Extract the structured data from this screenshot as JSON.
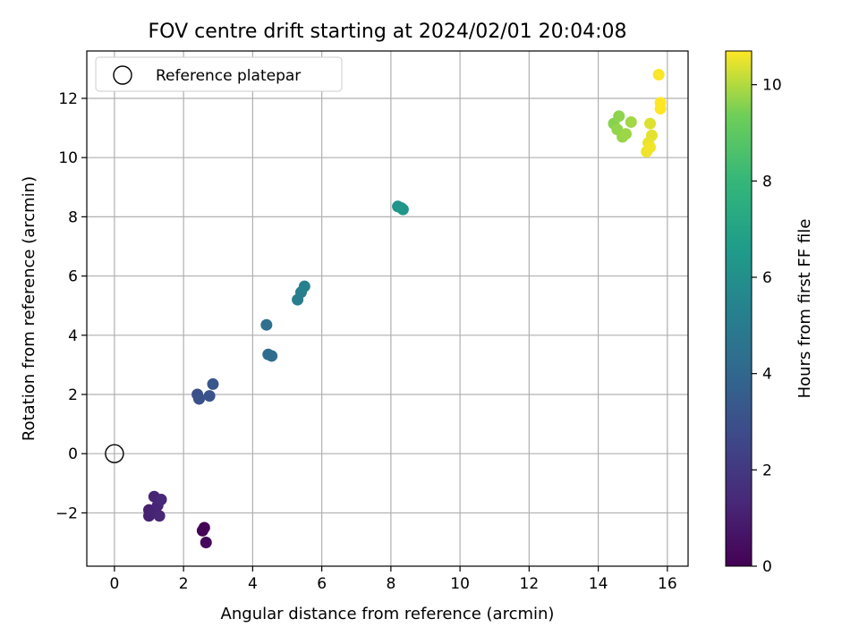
{
  "chart_data": {
    "type": "scatter",
    "title": "FOV centre drift starting at 2024/02/01 20:04:08",
    "xlabel": "Angular distance from reference (arcmin)",
    "ylabel": "Rotation from reference (arcmin)",
    "xlim": [
      -0.8,
      16.6
    ],
    "ylim": [
      -3.8,
      13.6
    ],
    "xticks": [
      0,
      2,
      4,
      6,
      8,
      10,
      12,
      14,
      16
    ],
    "yticks": [
      -2,
      0,
      2,
      4,
      6,
      8,
      10,
      12
    ],
    "grid": true,
    "legend": {
      "position": "top-left",
      "entries": [
        "Reference platepar"
      ]
    },
    "reference_point": {
      "x": 0,
      "y": 0,
      "label": "Reference platepar"
    },
    "colorbar": {
      "label": "Hours from first FF file",
      "range": [
        0,
        10.7
      ],
      "ticks": [
        0,
        2,
        4,
        6,
        8,
        10
      ],
      "colormap": "viridis"
    },
    "points": [
      {
        "x": 2.6,
        "y": -2.5,
        "c": 0.0
      },
      {
        "x": 2.55,
        "y": -2.6,
        "c": 0.1
      },
      {
        "x": 2.65,
        "y": -3.0,
        "c": 0.25
      },
      {
        "x": 1.0,
        "y": -1.9,
        "c": 1.05
      },
      {
        "x": 1.0,
        "y": -2.1,
        "c": 1.1
      },
      {
        "x": 1.1,
        "y": -1.95,
        "c": 1.15
      },
      {
        "x": 1.15,
        "y": -1.45,
        "c": 1.2
      },
      {
        "x": 1.25,
        "y": -1.75,
        "c": 1.25
      },
      {
        "x": 1.3,
        "y": -2.1,
        "c": 1.3
      },
      {
        "x": 1.35,
        "y": -1.55,
        "c": 1.35
      },
      {
        "x": 2.4,
        "y": 2.0,
        "c": 2.9
      },
      {
        "x": 2.45,
        "y": 1.85,
        "c": 3.0
      },
      {
        "x": 2.75,
        "y": 1.95,
        "c": 3.1
      },
      {
        "x": 2.85,
        "y": 2.35,
        "c": 3.3
      },
      {
        "x": 4.45,
        "y": 3.35,
        "c": 4.2
      },
      {
        "x": 4.55,
        "y": 3.3,
        "c": 4.25
      },
      {
        "x": 4.4,
        "y": 4.35,
        "c": 4.4
      },
      {
        "x": 5.3,
        "y": 5.2,
        "c": 5.1
      },
      {
        "x": 5.4,
        "y": 5.45,
        "c": 5.2
      },
      {
        "x": 5.5,
        "y": 5.65,
        "c": 5.3
      },
      {
        "x": 8.2,
        "y": 8.35,
        "c": 6.2
      },
      {
        "x": 8.3,
        "y": 8.3,
        "c": 6.25
      },
      {
        "x": 8.35,
        "y": 8.25,
        "c": 6.3
      },
      {
        "x": 14.45,
        "y": 11.15,
        "c": 9.6
      },
      {
        "x": 14.6,
        "y": 11.4,
        "c": 9.65
      },
      {
        "x": 14.55,
        "y": 10.95,
        "c": 9.7
      },
      {
        "x": 14.7,
        "y": 10.7,
        "c": 9.75
      },
      {
        "x": 14.8,
        "y": 10.8,
        "c": 9.8
      },
      {
        "x": 14.95,
        "y": 11.2,
        "c": 9.85
      },
      {
        "x": 15.5,
        "y": 11.15,
        "c": 10.4
      },
      {
        "x": 15.55,
        "y": 10.75,
        "c": 10.45
      },
      {
        "x": 15.45,
        "y": 10.5,
        "c": 10.5
      },
      {
        "x": 15.4,
        "y": 10.2,
        "c": 10.55
      },
      {
        "x": 15.5,
        "y": 10.35,
        "c": 10.6
      },
      {
        "x": 15.75,
        "y": 12.8,
        "c": 10.65
      },
      {
        "x": 15.8,
        "y": 11.85,
        "c": 10.7
      },
      {
        "x": 15.8,
        "y": 11.65,
        "c": 10.7
      }
    ]
  }
}
